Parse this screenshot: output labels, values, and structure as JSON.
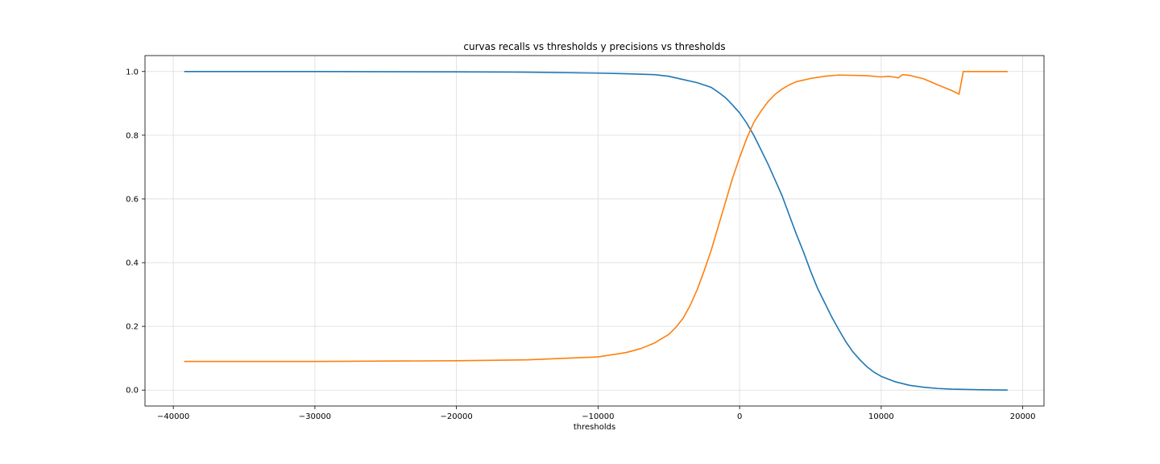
{
  "chart_data": {
    "type": "line",
    "title": "curvas recalls vs thresholds y precisions vs thresholds",
    "xlabel": "thresholds",
    "ylabel": "",
    "xlim": [
      -42000,
      21500
    ],
    "ylim": [
      -0.05,
      1.05
    ],
    "grid": true,
    "legend": "none",
    "xticks": [
      -40000,
      -30000,
      -20000,
      -10000,
      0,
      10000,
      20000
    ],
    "xtick_labels": [
      "−40000",
      "−30000",
      "−20000",
      "−10000",
      "0",
      "10000",
      "20000"
    ],
    "yticks": [
      0.0,
      0.2,
      0.4,
      0.6,
      0.8,
      1.0
    ],
    "ytick_labels": [
      "0.0",
      "0.2",
      "0.4",
      "0.6",
      "0.8",
      "1.0"
    ],
    "series": [
      {
        "color": "#1f77b4",
        "x": [
          -39200,
          -30000,
          -20000,
          -15000,
          -10000,
          -8000,
          -6000,
          -5000,
          -4000,
          -3000,
          -2000,
          -1500,
          -1000,
          -500,
          0,
          500,
          1000,
          1500,
          2000,
          2500,
          3000,
          3500,
          4000,
          4500,
          5000,
          5500,
          6000,
          6500,
          7000,
          7500,
          8000,
          8500,
          9000,
          9500,
          10000,
          11000,
          12000,
          13000,
          14000,
          15000,
          16000,
          17000,
          18000,
          18900
        ],
        "y": [
          1.0,
          1.0,
          0.999,
          0.998,
          0.995,
          0.993,
          0.99,
          0.985,
          0.975,
          0.965,
          0.95,
          0.935,
          0.918,
          0.895,
          0.87,
          0.838,
          0.8,
          0.755,
          0.71,
          0.66,
          0.61,
          0.55,
          0.49,
          0.435,
          0.375,
          0.32,
          0.275,
          0.23,
          0.19,
          0.152,
          0.12,
          0.095,
          0.073,
          0.056,
          0.043,
          0.026,
          0.015,
          0.009,
          0.005,
          0.003,
          0.002,
          0.001,
          0.0005,
          0.0
        ]
      },
      {
        "color": "#ff7f0e",
        "x": [
          -39200,
          -30000,
          -20000,
          -15000,
          -10000,
          -8000,
          -7000,
          -6000,
          -5000,
          -4500,
          -4000,
          -3500,
          -3000,
          -2500,
          -2000,
          -1500,
          -1000,
          -500,
          0,
          500,
          1000,
          1500,
          2000,
          2500,
          3000,
          3500,
          4000,
          5000,
          6000,
          7000,
          8000,
          9000,
          10000,
          10500,
          11000,
          11200,
          11500,
          12000,
          13000,
          14000,
          15000,
          15500,
          15800,
          16500,
          17500,
          18900
        ],
        "y": [
          0.09,
          0.09,
          0.092,
          0.095,
          0.104,
          0.118,
          0.13,
          0.148,
          0.175,
          0.197,
          0.225,
          0.265,
          0.315,
          0.375,
          0.44,
          0.515,
          0.59,
          0.665,
          0.73,
          0.79,
          0.84,
          0.875,
          0.905,
          0.928,
          0.945,
          0.958,
          0.968,
          0.978,
          0.985,
          0.989,
          0.988,
          0.987,
          0.983,
          0.985,
          0.982,
          0.98,
          0.99,
          0.988,
          0.977,
          0.958,
          0.94,
          0.929,
          1.0,
          1.0,
          1.0,
          1.0
        ]
      }
    ]
  }
}
